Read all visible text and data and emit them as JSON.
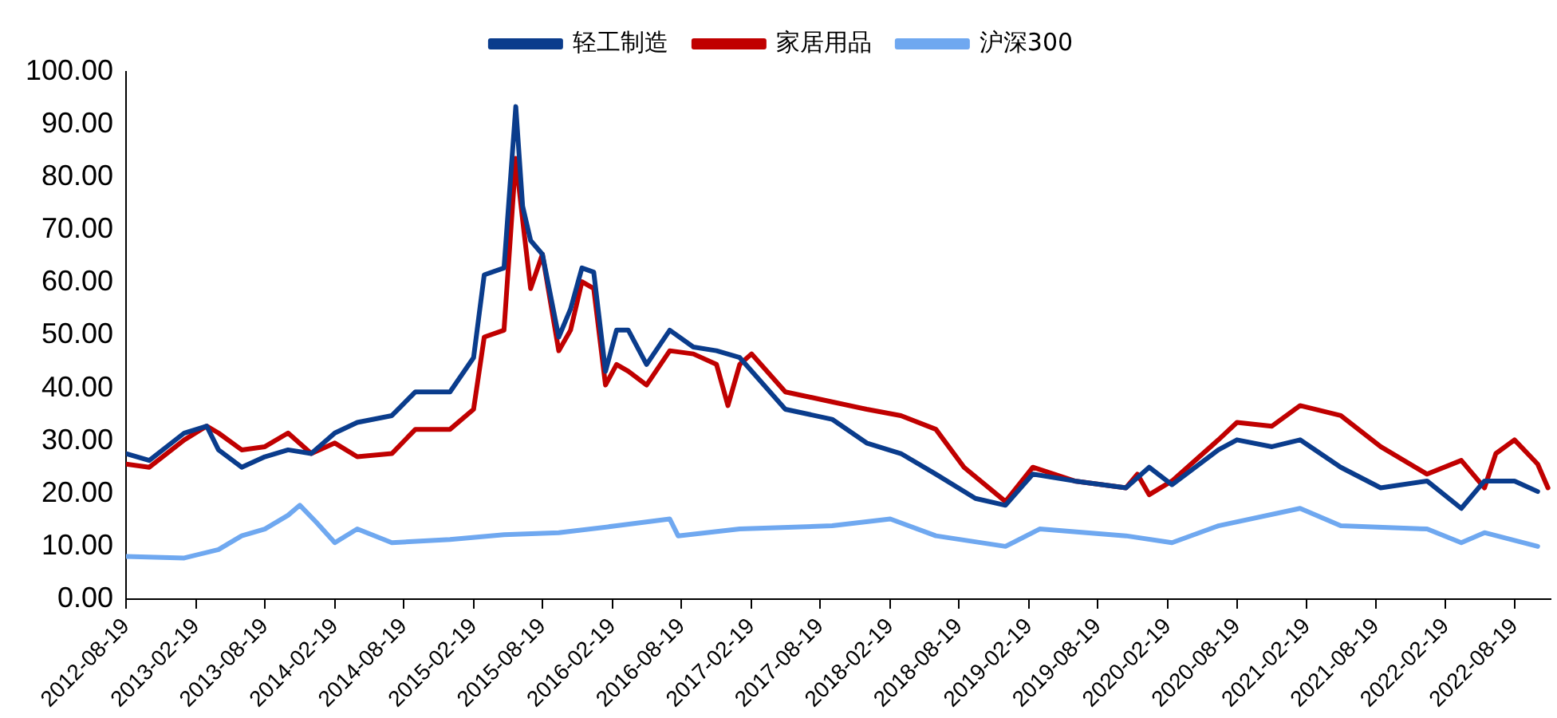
{
  "chart_data": {
    "type": "line",
    "legend": "top",
    "grid": false,
    "marker": "none",
    "line_style": "solid",
    "xlim": [
      "2012-08-19",
      "2022-11-22"
    ],
    "xticks": [
      "2012-08-19",
      "2013-02-19",
      "2013-08-19",
      "2014-02-19",
      "2014-08-19",
      "2015-02-19",
      "2015-08-19",
      "2016-02-19",
      "2016-08-19",
      "2017-02-19",
      "2017-08-19",
      "2018-02-19",
      "2018-08-19",
      "2019-02-19",
      "2019-08-19",
      "2020-02-19",
      "2020-08-19",
      "2021-02-19",
      "2021-08-19",
      "2022-02-19",
      "2022-08-19"
    ],
    "ylim": [
      0,
      100
    ],
    "yticks": [
      {
        "value": 0,
        "label": "0.00"
      },
      {
        "value": 10,
        "label": "10.00"
      },
      {
        "value": 20,
        "label": "20.00"
      },
      {
        "value": 30,
        "label": "30.00"
      },
      {
        "value": 40,
        "label": "40.00"
      },
      {
        "value": 50,
        "label": "50.00"
      },
      {
        "value": 60,
        "label": "60.00"
      },
      {
        "value": 70,
        "label": "70.00"
      },
      {
        "value": 80,
        "label": "80.00"
      },
      {
        "value": 90,
        "label": "90.00"
      },
      {
        "value": 100,
        "label": "100.00"
      }
    ],
    "series": [
      {
        "name": "轻工制造",
        "color": "#0a3c8c",
        "x": [
          "2012-08-19",
          "2012-10-19",
          "2013-01-19",
          "2013-03-19",
          "2013-04-19",
          "2013-06-19",
          "2013-08-19",
          "2013-10-19",
          "2013-12-19",
          "2014-02-19",
          "2014-04-19",
          "2014-07-19",
          "2014-09-19",
          "2014-12-19",
          "2015-02-19",
          "2015-03-19",
          "2015-05-10",
          "2015-06-10",
          "2015-06-28",
          "2015-07-19",
          "2015-08-19",
          "2015-10-01",
          "2015-11-01",
          "2015-12-01",
          "2016-01-01",
          "2016-02-01",
          "2016-03-01",
          "2016-04-01",
          "2016-05-19",
          "2016-07-19",
          "2016-09-19",
          "2016-11-19",
          "2017-01-19",
          "2017-05-19",
          "2017-09-19",
          "2017-12-19",
          "2018-03-19",
          "2018-06-19",
          "2018-10-01",
          "2018-12-19",
          "2019-03-01",
          "2019-06-19",
          "2019-11-01",
          "2020-01-01",
          "2020-03-01",
          "2020-07-01",
          "2020-08-19",
          "2020-11-19",
          "2021-02-01",
          "2021-05-19",
          "2021-09-01",
          "2022-01-01",
          "2022-04-01",
          "2022-06-01",
          "2022-08-19",
          "2022-10-19"
        ],
        "values": [
          27.6,
          26.3,
          31.5,
          32.8,
          28.3,
          25,
          27,
          28.3,
          27.6,
          31.5,
          33.5,
          34.8,
          39.3,
          39.3,
          45.8,
          61.5,
          62.8,
          93.4,
          74.5,
          68,
          65.4,
          49.7,
          55,
          62.8,
          62,
          43.2,
          51,
          51,
          44.5,
          51,
          47.8,
          47.1,
          45.8,
          36,
          34.1,
          29.6,
          27.6,
          23.7,
          19.1,
          17.8,
          23.7,
          22.4,
          21.1,
          25,
          21.7,
          28.3,
          30.2,
          28.9,
          30.2,
          25,
          21.1,
          22.4,
          17.2,
          22.4,
          22.4,
          20.4
        ]
      },
      {
        "name": "家居用品",
        "color": "#c00000",
        "x": [
          "2012-08-19",
          "2012-10-19",
          "2013-01-19",
          "2013-03-19",
          "2013-04-19",
          "2013-06-19",
          "2013-08-19",
          "2013-10-19",
          "2013-12-19",
          "2014-02-19",
          "2014-04-19",
          "2014-07-19",
          "2014-09-19",
          "2014-12-19",
          "2015-02-19",
          "2015-03-19",
          "2015-05-10",
          "2015-06-10",
          "2015-06-28",
          "2015-07-19",
          "2015-08-19",
          "2015-10-01",
          "2015-11-01",
          "2015-12-01",
          "2016-01-01",
          "2016-02-01",
          "2016-03-01",
          "2016-04-01",
          "2016-05-19",
          "2016-07-19",
          "2016-09-19",
          "2016-11-19",
          "2016-12-19",
          "2017-01-19",
          "2017-02-19",
          "2017-05-19",
          "2017-09-19",
          "2017-12-19",
          "2018-03-19",
          "2018-06-19",
          "2018-09-01",
          "2018-12-19",
          "2019-03-01",
          "2019-06-19",
          "2019-11-01",
          "2019-12-01",
          "2020-01-01",
          "2020-03-01",
          "2020-07-01",
          "2020-08-19",
          "2020-11-19",
          "2021-02-01",
          "2021-05-19",
          "2021-09-01",
          "2022-01-01",
          "2022-04-01",
          "2022-06-01",
          "2022-07-01",
          "2022-08-19",
          "2022-10-19",
          "2022-11-15"
        ],
        "values": [
          25.6,
          25,
          30.2,
          32.8,
          31.5,
          28.3,
          28.9,
          31.5,
          27.6,
          29.6,
          27,
          27.6,
          32.2,
          32.2,
          36,
          49.7,
          51,
          83.6,
          71.9,
          58.9,
          65.4,
          47.1,
          51,
          60.2,
          58.9,
          40.6,
          44.5,
          43.2,
          40.6,
          47.1,
          46.5,
          44.5,
          36.7,
          44.5,
          46.5,
          39.3,
          37.4,
          36,
          34.8,
          32.2,
          25,
          18.5,
          25,
          22.4,
          21.1,
          23.7,
          19.8,
          22.4,
          30.2,
          33.5,
          32.8,
          36.7,
          34.8,
          28.9,
          23.7,
          26.3,
          21.1,
          27.6,
          30.2,
          25.6,
          21.1
        ]
      },
      {
        "name": "沪深300",
        "color": "#6fa8f0",
        "x": [
          "2012-08-19",
          "2013-01-19",
          "2013-04-19",
          "2013-06-19",
          "2013-08-19",
          "2013-10-19",
          "2013-11-19",
          "2014-01-01",
          "2014-02-19",
          "2014-04-19",
          "2014-07-19",
          "2014-12-19",
          "2015-05-10",
          "2015-10-01",
          "2016-03-01",
          "2016-07-19",
          "2016-08-10",
          "2017-01-19",
          "2017-09-19",
          "2018-02-19",
          "2018-06-19",
          "2018-12-19",
          "2019-03-19",
          "2019-11-01",
          "2020-03-01",
          "2020-07-01",
          "2021-02-01",
          "2021-05-19",
          "2022-01-01",
          "2022-04-01",
          "2022-06-01",
          "2022-10-19"
        ],
        "values": [
          8.1,
          7.8,
          9.4,
          12,
          13.3,
          15.9,
          17.8,
          14.6,
          10.7,
          13.3,
          10.7,
          11.3,
          12.2,
          12.6,
          13.9,
          15.2,
          12,
          13.3,
          13.9,
          15.2,
          12,
          10,
          13.3,
          12,
          10.7,
          13.9,
          17.2,
          13.9,
          13.3,
          10.7,
          12.6,
          10
        ]
      }
    ]
  }
}
